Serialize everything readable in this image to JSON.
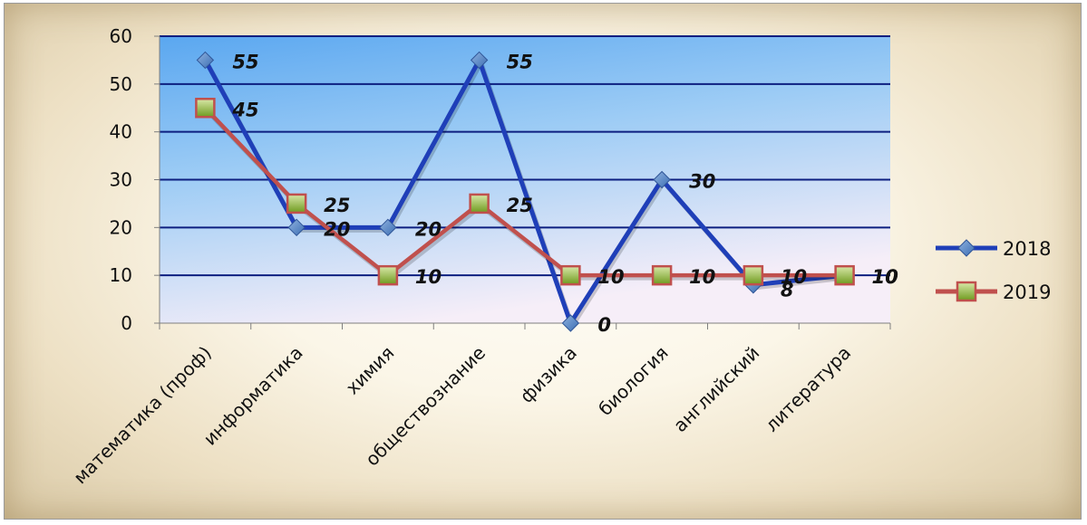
{
  "chart_data": {
    "type": "line",
    "categories": [
      "математика (проф)",
      "информатика",
      "химия",
      "обществознание",
      "физика",
      "биология",
      "английский",
      "литература"
    ],
    "series": [
      {
        "name": "2018",
        "values": [
          55,
          20,
          20,
          55,
          0,
          30,
          8,
          10
        ],
        "labels": [
          "55",
          "20",
          "20",
          "55",
          "0",
          "30",
          "8",
          "10"
        ],
        "color": "#1f3fb8",
        "marker": "diamond"
      },
      {
        "name": "2019",
        "values": [
          45,
          25,
          10,
          25,
          10,
          10,
          10,
          10
        ],
        "labels": [
          "45",
          "25",
          "10",
          "25",
          "10",
          "10",
          "10",
          "10"
        ],
        "color": "#c0504d",
        "marker": "square"
      }
    ],
    "ylim": [
      0,
      60
    ],
    "yticks": [
      "0",
      "10",
      "20",
      "30",
      "40",
      "50",
      "60"
    ],
    "grid": true,
    "legend_position": "right",
    "xlabel": "",
    "ylabel": ""
  }
}
